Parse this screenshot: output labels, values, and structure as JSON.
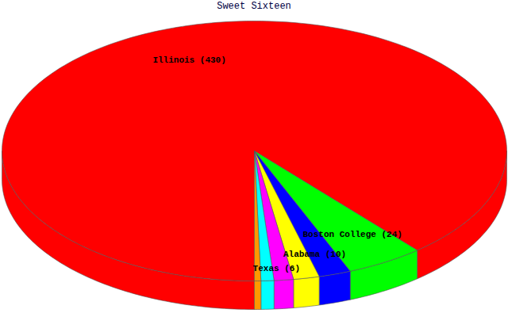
{
  "chart_data": {
    "type": "pie",
    "title": "Sweet Sixteen",
    "categories": [
      "Illinois (430)",
      "Boston College (24)",
      "Alabama (10)",
      null,
      "Texas (6)",
      null,
      null
    ],
    "values": [
      430,
      24,
      10,
      8,
      6,
      4,
      2
    ],
    "colors": [
      "#ff0000",
      "#00ff00",
      "#0000ff",
      "#ffff00",
      "#ff00ff",
      "#00ffff",
      "#ff9900"
    ]
  }
}
